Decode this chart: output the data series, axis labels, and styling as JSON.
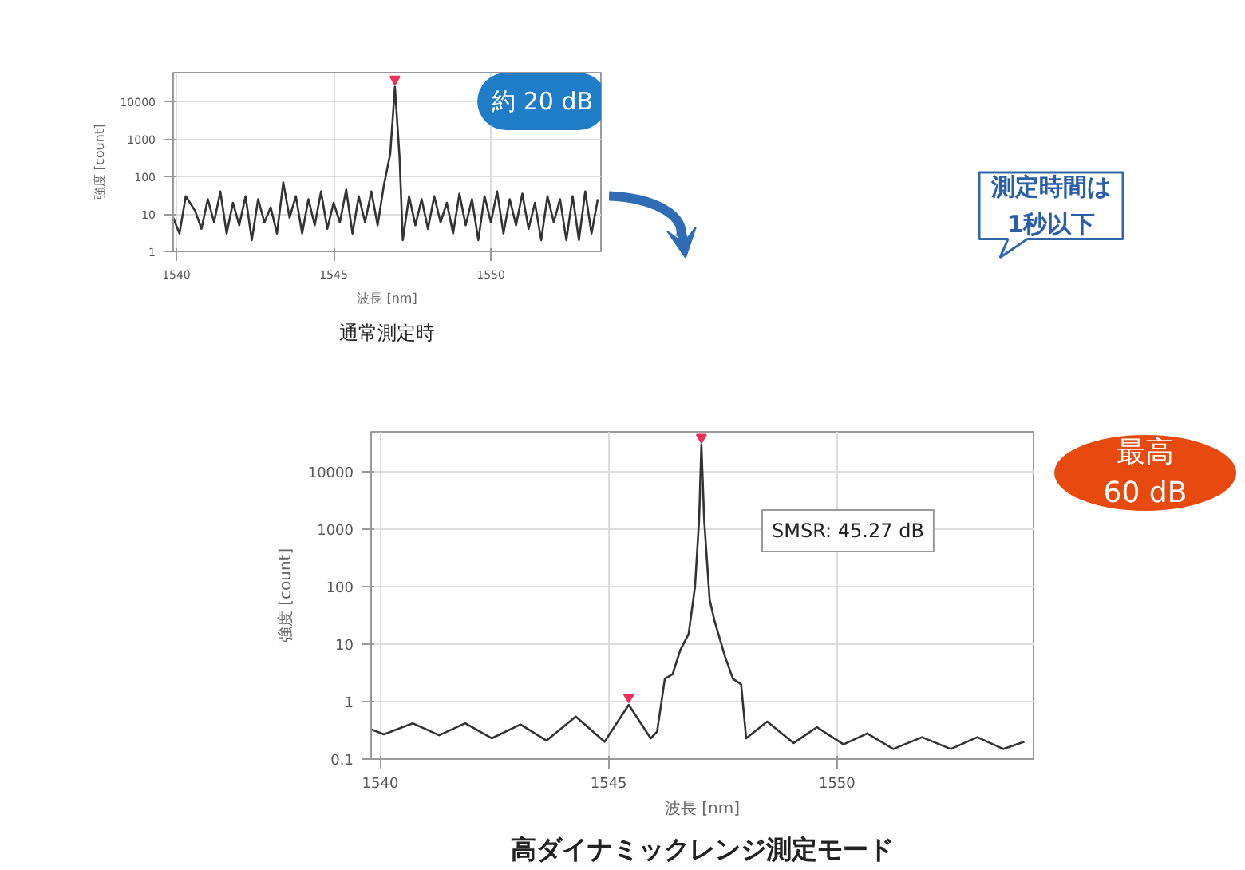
{
  "chart_data": [
    {
      "type": "line",
      "title": "通常測定時",
      "xlabel": "波長 [nm]",
      "ylabel": "強度 [count]",
      "log": "y",
      "grid": true,
      "xlim": [
        1539.9,
        1553.5
      ],
      "ylim": [
        1,
        60000
      ],
      "xticks": [
        1540,
        1545,
        1550
      ],
      "yticks": [
        1,
        10,
        100,
        1000,
        10000
      ],
      "annotations": [
        "約 20 dB"
      ],
      "series": [
        {
          "color": "#333333",
          "x": [
            1539.9,
            1540.1,
            1540.3,
            1540.6,
            1540.8,
            1541.0,
            1541.2,
            1541.4,
            1541.6,
            1541.8,
            1542.0,
            1542.2,
            1542.4,
            1542.6,
            1542.8,
            1543.0,
            1543.2,
            1543.4,
            1543.6,
            1543.8,
            1544.0,
            1544.2,
            1544.4,
            1544.6,
            1544.8,
            1545.0,
            1545.2,
            1545.4,
            1545.6,
            1545.8,
            1546.0,
            1546.2,
            1546.4,
            1546.6,
            1546.8,
            1546.95,
            1547.1,
            1547.2,
            1547.4,
            1547.6,
            1547.8,
            1548.0,
            1548.2,
            1548.4,
            1548.6,
            1548.8,
            1549.0,
            1549.2,
            1549.4,
            1549.6,
            1549.8,
            1550.0,
            1550.2,
            1550.4,
            1550.6,
            1550.8,
            1551.0,
            1551.2,
            1551.4,
            1551.6,
            1551.8,
            1552.0,
            1552.2,
            1552.4,
            1552.6,
            1552.8,
            1553.0,
            1553.2,
            1553.4
          ],
          "values": [
            8,
            3,
            30,
            12,
            4,
            25,
            6,
            40,
            3,
            20,
            5,
            30,
            2,
            25,
            6,
            15,
            3,
            70,
            8,
            30,
            3,
            25,
            5,
            40,
            4,
            20,
            6,
            45,
            3,
            30,
            6,
            40,
            5,
            60,
            400,
            25000,
            300,
            2,
            30,
            5,
            25,
            4,
            30,
            6,
            20,
            3,
            35,
            5,
            25,
            2,
            30,
            6,
            40,
            3,
            25,
            5,
            35,
            4,
            20,
            2,
            30,
            6,
            25,
            2,
            30,
            2,
            40,
            3,
            25
          ]
        },
        {
          "type": "scatter",
          "marker": "triangle",
          "color": "#e8325a",
          "x": [
            1546.95
          ],
          "values": [
            40000
          ]
        }
      ]
    },
    {
      "type": "line",
      "title": "高ダイナミックレンジ測定モード",
      "xlabel": "波長 [nm]",
      "ylabel": "強度 [count]",
      "log": "y",
      "grid": true,
      "xlim": [
        1539.8,
        1554.3
      ],
      "ylim": [
        0.1,
        50000
      ],
      "xticks": [
        1540,
        1545,
        1550
      ],
      "yticks": [
        0.1,
        1,
        10,
        100,
        1000,
        10000
      ],
      "annotations": [
        "SMSR: 45.27 dB",
        "最高\n60 dB",
        "測定時間は\n1秒以下"
      ],
      "series": [
        {
          "color": "#333333",
          "x": [
            1539.8,
            1540.08,
            1540.71,
            1541.29,
            1541.86,
            1542.44,
            1543.07,
            1543.64,
            1544.28,
            1544.91,
            1545.44,
            1545.92,
            1546.06,
            1546.23,
            1546.4,
            1546.57,
            1546.75,
            1546.89,
            1546.98,
            1547.03,
            1547.09,
            1547.21,
            1547.32,
            1547.55,
            1547.72,
            1547.9,
            1548.01,
            1548.47,
            1549.05,
            1549.56,
            1550.14,
            1550.66,
            1551.23,
            1551.86,
            1552.49,
            1553.07,
            1553.64,
            1554.1
          ],
          "values": [
            0.33,
            0.27,
            0.42,
            0.26,
            0.42,
            0.23,
            0.4,
            0.21,
            0.55,
            0.2,
            0.88,
            0.23,
            0.3,
            2.5,
            3,
            8,
            15,
            100,
            1500,
            30000,
            1500,
            60,
            25,
            6,
            2.5,
            2,
            0.23,
            0.45,
            0.19,
            0.36,
            0.18,
            0.28,
            0.15,
            0.24,
            0.15,
            0.24,
            0.15,
            0.2
          ]
        },
        {
          "type": "scatter",
          "marker": "triangle",
          "color": "#e8325a",
          "x": [
            1545.44,
            1547.03
          ],
          "values": [
            1.2,
            40000
          ]
        }
      ]
    }
  ]
}
